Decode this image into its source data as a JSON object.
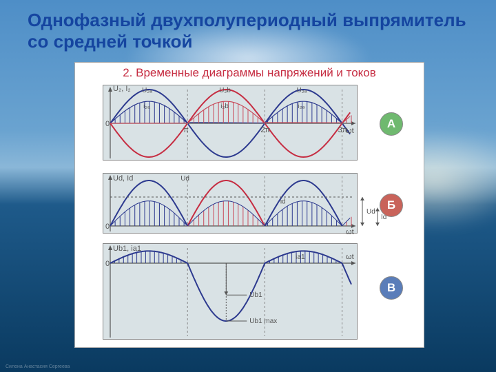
{
  "slide": {
    "background": {
      "sky_top": "#4e8ec7",
      "sky_mid": "#8ab7d8",
      "sea_top": "#1e5a8a",
      "sea_bottom": "#0a3a60"
    },
    "title": "Однофазный двухполупериодный выпрямитель со средней точкой",
    "title_color": "#1545a0",
    "signature": "Силона Анастасия Сергеева"
  },
  "figure": {
    "title": "2. Временные диаграммы напряжений и токов",
    "title_color": "#c62d42",
    "card_bg": "#ffffff",
    "panel_bg": "#d9e2e5",
    "axis_color": "#555555",
    "hatch_color": "#2d3a8f",
    "hatch_color_b": "#c94a5a",
    "curve_a_color": "#2d3a8f",
    "curve_b_color": "#c62d42",
    "badge_colors": {
      "A": "#6fb96f",
      "B": "#c9635a",
      "C": "#5a7db9"
    },
    "panelA": {
      "ylabel": "U₂, I₂",
      "curve_labels": [
        "U₂ₐ",
        "U₂b",
        "U₂ₐ"
      ],
      "hatch_labels": [
        "i₂ₐ",
        "i₂b",
        "i₂ₐ"
      ],
      "xticks": [
        "π",
        "2π",
        "3π"
      ],
      "xlabel": "ωt",
      "zero": "0",
      "badge": "А",
      "x_range": [
        0,
        9.8
      ],
      "amplitude": 1.0,
      "hatch_amp": 0.65,
      "hatch_step": 0.2
    },
    "panelB": {
      "ylabel": "Ud, Id",
      "curve_label": "Ud",
      "hatch_label": "id",
      "side_labels": [
        "Ud",
        "Id"
      ],
      "xlabel": "ωt",
      "zero": "0",
      "badge": "Б",
      "x_range": [
        0,
        9.8
      ],
      "amplitude": 1.0,
      "hatch_amp": 0.55,
      "dc_level": 0.637,
      "id_level": 0.4
    },
    "panelC": {
      "ylabel": "Ub1, ia1",
      "hatch_label": "ia1",
      "arrow_labels": [
        "Ub1",
        "Ub1 max"
      ],
      "xlabel": "ωt",
      "zero": "0",
      "badge": "В",
      "x_range": [
        0,
        9.8
      ],
      "pos_amp": 0.42,
      "neg_amp": 2.0
    }
  }
}
